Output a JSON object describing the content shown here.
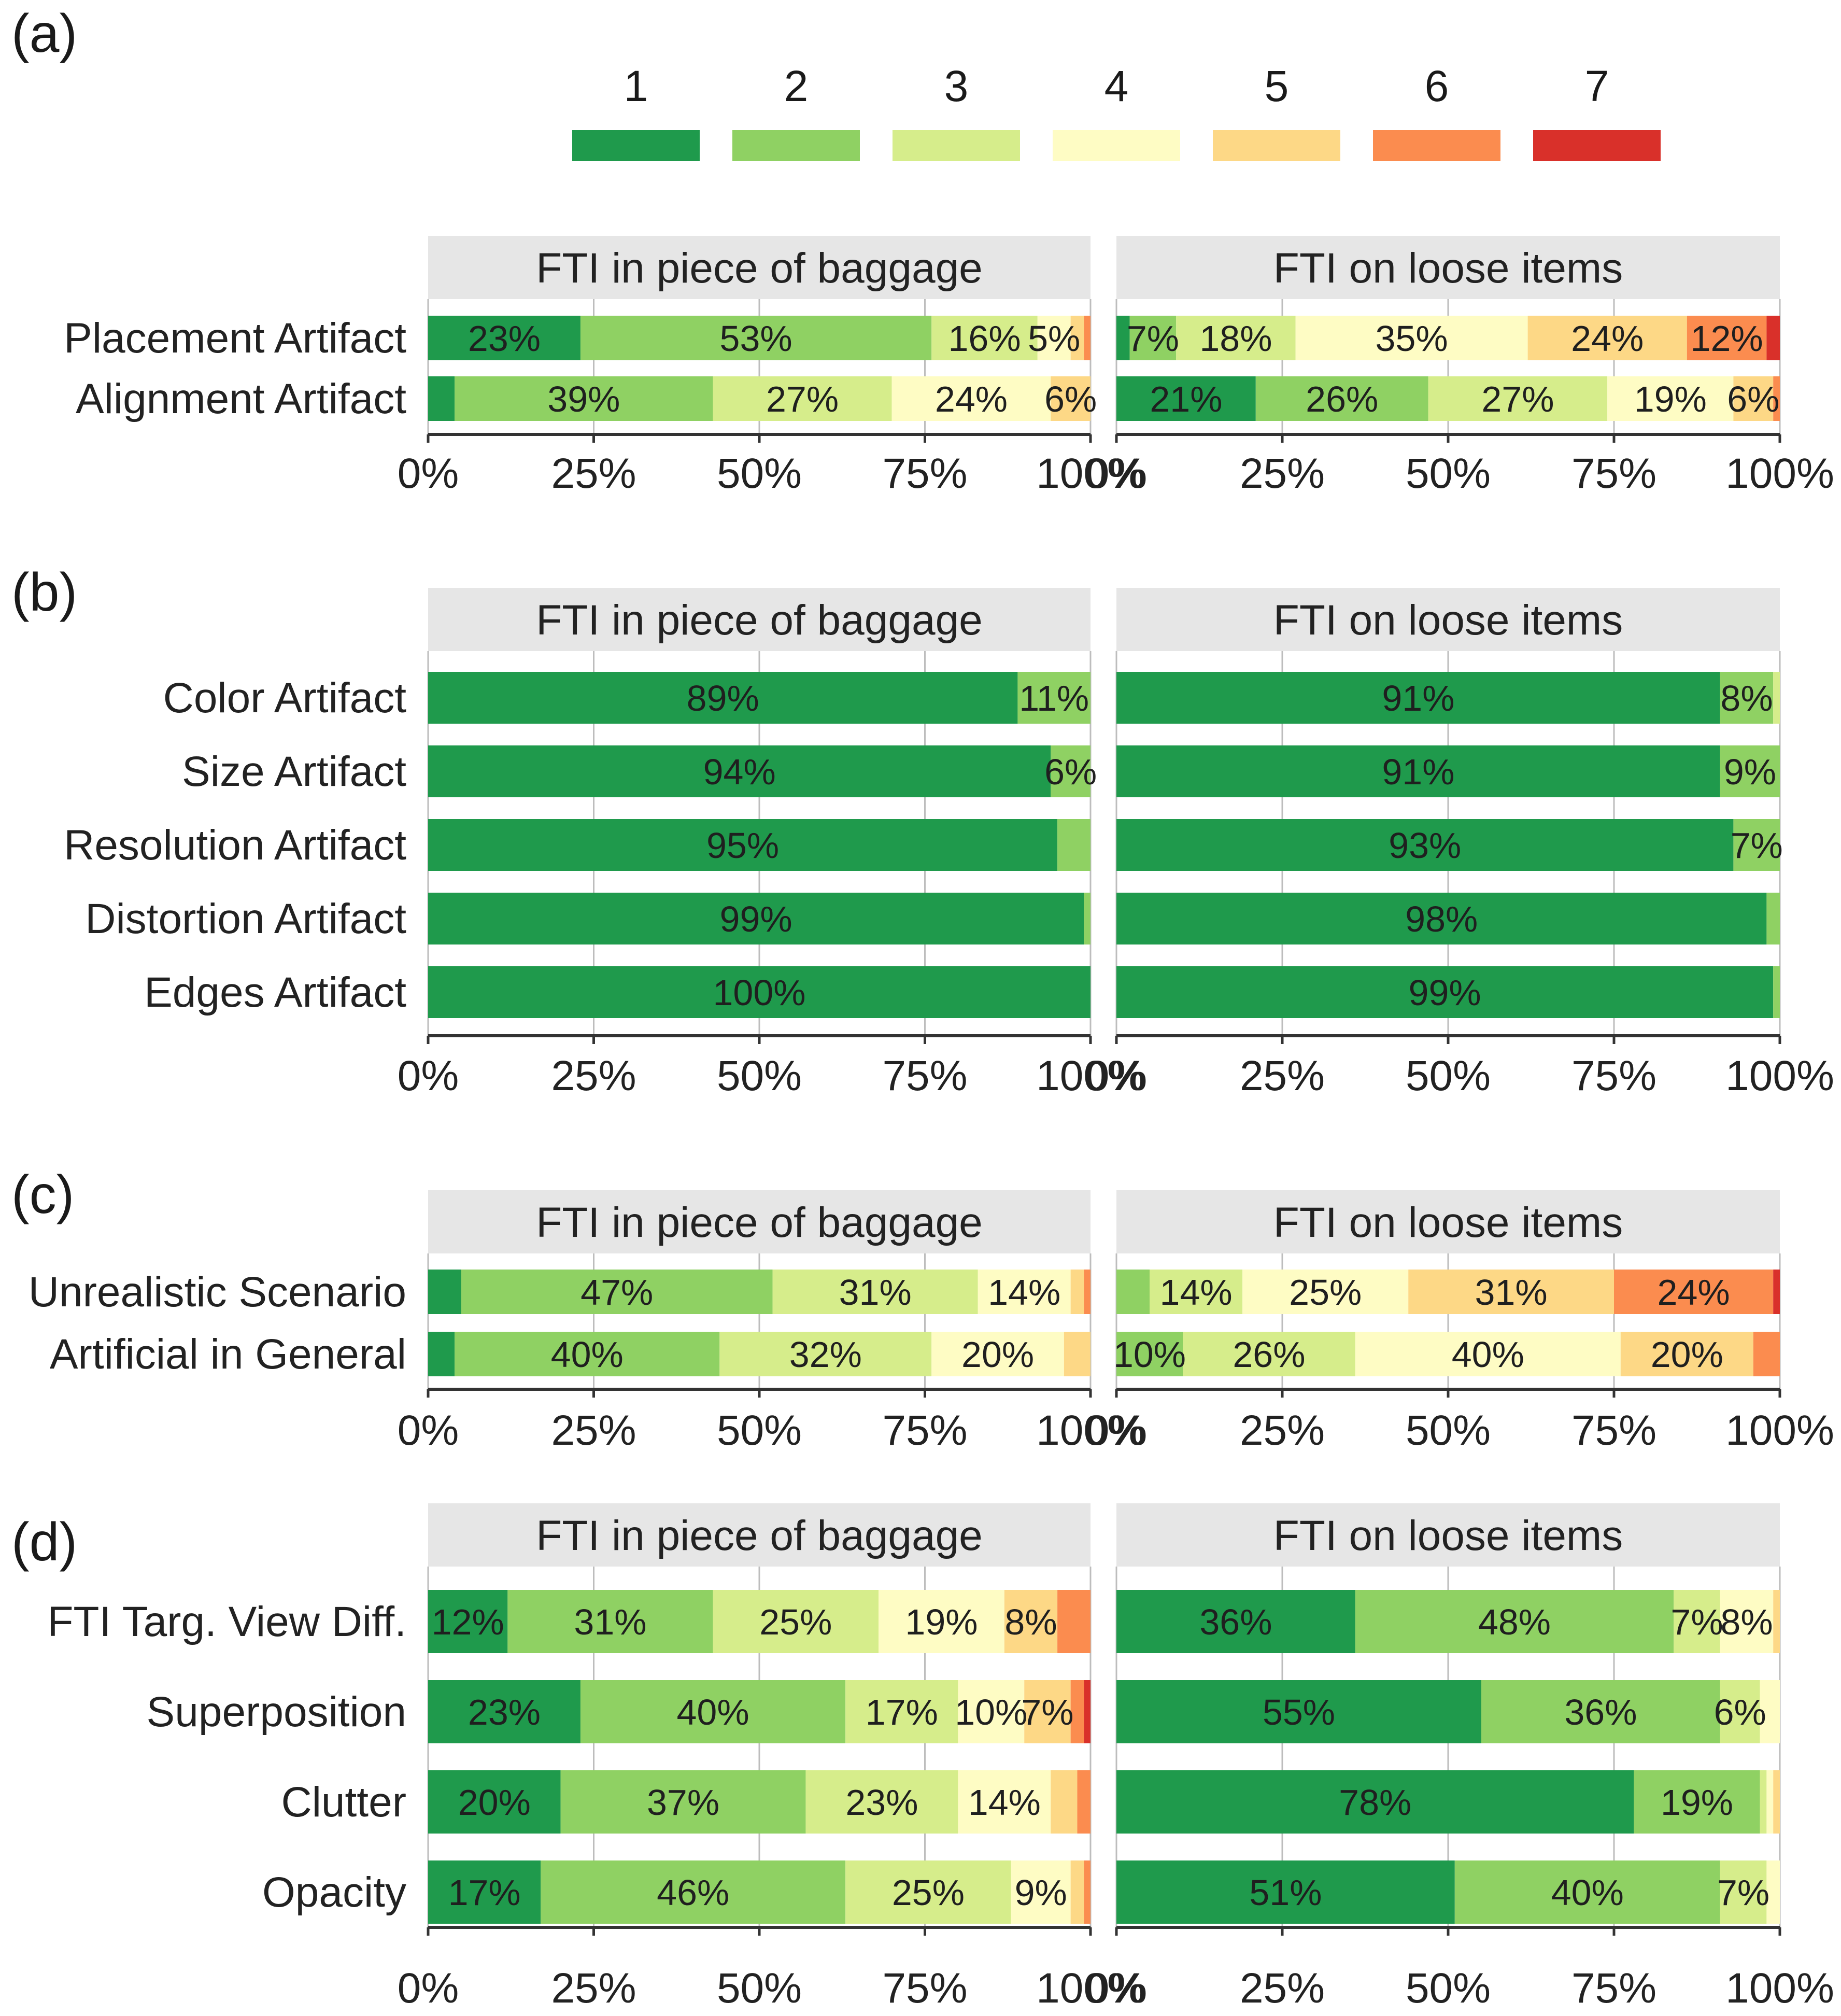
{
  "legend": {
    "labels": [
      "1",
      "2",
      "3",
      "4",
      "5",
      "6",
      "7"
    ],
    "colors": [
      "#1f9a4c",
      "#8fd163",
      "#d6ed8b",
      "#fefcc4",
      "#fdd886",
      "#fb8c4f",
      "#d9302a"
    ]
  },
  "chart_data": [
    {
      "panel": "(a)",
      "type": "bar",
      "orientation": "horizontal-stacked-percent",
      "facets": [
        "FTI in piece of baggage",
        "FTI on loose items"
      ],
      "categories": [
        "Placement Artifact",
        "Alignment Artifact"
      ],
      "x_ticks": [
        "0%",
        "25%",
        "50%",
        "75%",
        "100%"
      ],
      "xlim": [
        0,
        100
      ],
      "values": [
        [
          [
            23,
            53,
            16,
            5,
            2,
            1,
            0
          ],
          [
            4,
            39,
            27,
            24,
            6,
            0,
            0
          ]
        ],
        [
          [
            2,
            7,
            18,
            35,
            24,
            12,
            2
          ],
          [
            21,
            26,
            27,
            19,
            6,
            1,
            0
          ]
        ]
      ],
      "labels": [
        [
          [
            "23%",
            "53%",
            "16%",
            "5%",
            "",
            "",
            ""
          ],
          [
            "",
            "39%",
            "27%",
            "24%",
            "6%",
            "",
            ""
          ]
        ],
        [
          [
            "",
            "7%",
            "18%",
            "35%",
            "24%",
            "12%",
            ""
          ],
          [
            "21%",
            "26%",
            "27%",
            "19%",
            "6%",
            "",
            ""
          ]
        ]
      ]
    },
    {
      "panel": "(b)",
      "type": "bar",
      "orientation": "horizontal-stacked-percent",
      "facets": [
        "FTI in piece of baggage",
        "FTI on loose items"
      ],
      "categories": [
        "Color Artifact",
        "Size Artifact",
        "Resolution Artifact",
        "Distortion Artifact",
        "Edges Artifact"
      ],
      "x_ticks": [
        "0%",
        "25%",
        "50%",
        "75%",
        "100%"
      ],
      "xlim": [
        0,
        100
      ],
      "values": [
        [
          [
            89,
            11,
            0,
            0,
            0,
            0,
            0
          ],
          [
            94,
            6,
            0,
            0,
            0,
            0,
            0
          ],
          [
            95,
            5,
            0,
            0,
            0,
            0,
            0
          ],
          [
            99,
            1,
            0,
            0,
            0,
            0,
            0
          ],
          [
            100,
            0,
            0,
            0,
            0,
            0,
            0
          ]
        ],
        [
          [
            91,
            8,
            1,
            0,
            0,
            0,
            0
          ],
          [
            91,
            9,
            0,
            0,
            0,
            0,
            0
          ],
          [
            93,
            7,
            0,
            0,
            0,
            0,
            0
          ],
          [
            98,
            2,
            0,
            0,
            0,
            0,
            0
          ],
          [
            99,
            1,
            0,
            0,
            0,
            0,
            0
          ]
        ]
      ],
      "labels": [
        [
          [
            "89%",
            "11%",
            "",
            "",
            "",
            "",
            ""
          ],
          [
            "94%",
            "6%",
            "",
            "",
            "",
            "",
            ""
          ],
          [
            "95%",
            "",
            "",
            "",
            "",
            "",
            ""
          ],
          [
            "99%",
            "",
            "",
            "",
            "",
            "",
            ""
          ],
          [
            "100%",
            "",
            "",
            "",
            "",
            "",
            ""
          ]
        ],
        [
          [
            "91%",
            "8%",
            "",
            "",
            "",
            "",
            ""
          ],
          [
            "91%",
            "9%",
            "",
            "",
            "",
            "",
            ""
          ],
          [
            "93%",
            "7%",
            "",
            "",
            "",
            "",
            ""
          ],
          [
            "98%",
            "",
            "",
            "",
            "",
            "",
            ""
          ],
          [
            "99%",
            "",
            "",
            "",
            "",
            "",
            ""
          ]
        ]
      ]
    },
    {
      "panel": "(c)",
      "type": "bar",
      "orientation": "horizontal-stacked-percent",
      "facets": [
        "FTI in piece of baggage",
        "FTI on loose items"
      ],
      "categories": [
        "Unrealistic Scenario",
        "Artificial in General"
      ],
      "x_ticks": [
        "0%",
        "25%",
        "50%",
        "75%",
        "100%"
      ],
      "xlim": [
        0,
        100
      ],
      "values": [
        [
          [
            5,
            47,
            31,
            14,
            2,
            1,
            0
          ],
          [
            4,
            40,
            32,
            20,
            4,
            0,
            0
          ]
        ],
        [
          [
            0,
            5,
            14,
            25,
            31,
            24,
            1
          ],
          [
            0,
            10,
            26,
            40,
            20,
            4,
            0
          ]
        ]
      ],
      "labels": [
        [
          [
            "",
            "47%",
            "31%",
            "14%",
            "",
            "",
            ""
          ],
          [
            "",
            "40%",
            "32%",
            "20%",
            "",
            "",
            ""
          ]
        ],
        [
          [
            "",
            "",
            "14%",
            "25%",
            "31%",
            "24%",
            ""
          ],
          [
            "",
            "10%",
            "26%",
            "40%",
            "20%",
            "",
            ""
          ]
        ]
      ]
    },
    {
      "panel": "(d)",
      "type": "bar",
      "orientation": "horizontal-stacked-percent",
      "facets": [
        "FTI in piece of baggage",
        "FTI on loose items"
      ],
      "categories": [
        "FTI Targ. View Diff.",
        "Superposition",
        "Clutter",
        "Opacity"
      ],
      "x_ticks": [
        "0%",
        "25%",
        "50%",
        "75%",
        "100%"
      ],
      "xlim": [
        0,
        100
      ],
      "values": [
        [
          [
            12,
            31,
            25,
            19,
            8,
            5,
            0
          ],
          [
            23,
            40,
            17,
            10,
            7,
            2,
            1
          ],
          [
            20,
            37,
            23,
            14,
            4,
            2,
            0
          ],
          [
            17,
            46,
            25,
            9,
            2,
            1,
            0
          ]
        ],
        [
          [
            36,
            48,
            7,
            8,
            1,
            0,
            0
          ],
          [
            55,
            36,
            6,
            3,
            0,
            0,
            0
          ],
          [
            78,
            19,
            1,
            1,
            1,
            0,
            0
          ],
          [
            51,
            40,
            7,
            2,
            0,
            0,
            0
          ]
        ]
      ],
      "labels": [
        [
          [
            "12%",
            "31%",
            "25%",
            "19%",
            "8%",
            "",
            ""
          ],
          [
            "23%",
            "40%",
            "17%",
            "10%",
            "7%",
            "",
            ""
          ],
          [
            "20%",
            "37%",
            "23%",
            "14%",
            "",
            "",
            ""
          ],
          [
            "17%",
            "46%",
            "25%",
            "9%",
            "",
            "",
            ""
          ]
        ],
        [
          [
            "36%",
            "48%",
            "7%",
            "8%",
            "",
            "",
            ""
          ],
          [
            "55%",
            "36%",
            "6%",
            "",
            "",
            "",
            ""
          ],
          [
            "78%",
            "19%",
            "",
            "",
            "",
            "",
            ""
          ],
          [
            "51%",
            "40%",
            "7%",
            "",
            "",
            "",
            ""
          ]
        ]
      ]
    }
  ]
}
